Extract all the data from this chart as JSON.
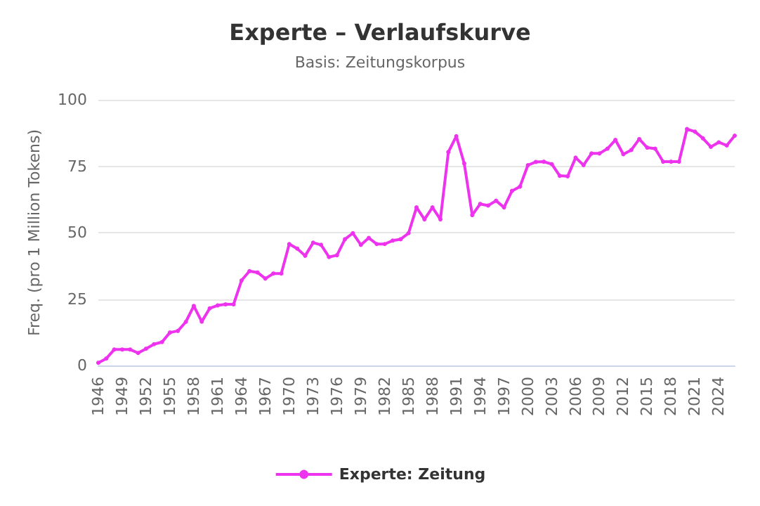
{
  "chart_data": {
    "type": "line",
    "title": "Experte – Verlaufskurve",
    "subtitle": "Basis: Zeitungskorpus",
    "ylabel": "Freq. (pro 1 Million Tokens)",
    "categories": [
      "1946",
      null,
      null,
      "1949",
      null,
      null,
      "1952",
      null,
      null,
      "1955",
      null,
      null,
      "1958",
      null,
      null,
      "1961",
      null,
      null,
      "1964",
      null,
      null,
      "1967",
      null,
      null,
      "1970",
      null,
      null,
      "1973",
      null,
      null,
      "1976",
      null,
      null,
      "1979",
      null,
      null,
      "1982",
      null,
      null,
      "1985",
      null,
      null,
      "1988",
      null,
      null,
      "1991",
      null,
      null,
      "1994",
      null,
      null,
      "1997",
      null,
      null,
      "2000",
      null,
      null,
      "2003",
      null,
      null,
      "2006",
      null,
      null,
      "2009",
      null,
      null,
      "2012",
      null,
      null,
      "2015",
      null,
      null,
      "2018",
      null,
      null,
      "2021",
      null,
      null,
      "2024",
      null,
      null
    ],
    "series": [
      {
        "name": "Experte: Zeitung",
        "color": "#ee33ee",
        "values": [
          1,
          2.6,
          6,
          6,
          6,
          4.7,
          6.3,
          8,
          8.8,
          12.4,
          13,
          16.4,
          22.4,
          16.5,
          21.5,
          22.6,
          23,
          23,
          32,
          35.5,
          35,
          32.7,
          34.6,
          34.6,
          45.7,
          44,
          41.3,
          46.2,
          45.4,
          40.8,
          41.5,
          47.5,
          49.8,
          45.4,
          48,
          45.7,
          45.7,
          47,
          47.5,
          49.8,
          59.5,
          55,
          59.5,
          55,
          80.3,
          86.3,
          76,
          56.6,
          60.8,
          60.2,
          62,
          59.5,
          65.7,
          67.3,
          75.4,
          76.6,
          76.7,
          75.8,
          71.4,
          71.2,
          78.2,
          75.4,
          79.8,
          79.8,
          81.6,
          84.9,
          79.5,
          81.1,
          85.2,
          82,
          81.6,
          76.7,
          76.7,
          76.7,
          89,
          88,
          85.5,
          82.3,
          84,
          82.8,
          86.5
        ]
      }
    ],
    "ylim": [
      0,
      100
    ],
    "yticks": [
      0,
      25,
      50,
      75,
      100
    ],
    "grid": "y",
    "legend": "bottom",
    "marker": "circle",
    "line_style": "solid"
  }
}
